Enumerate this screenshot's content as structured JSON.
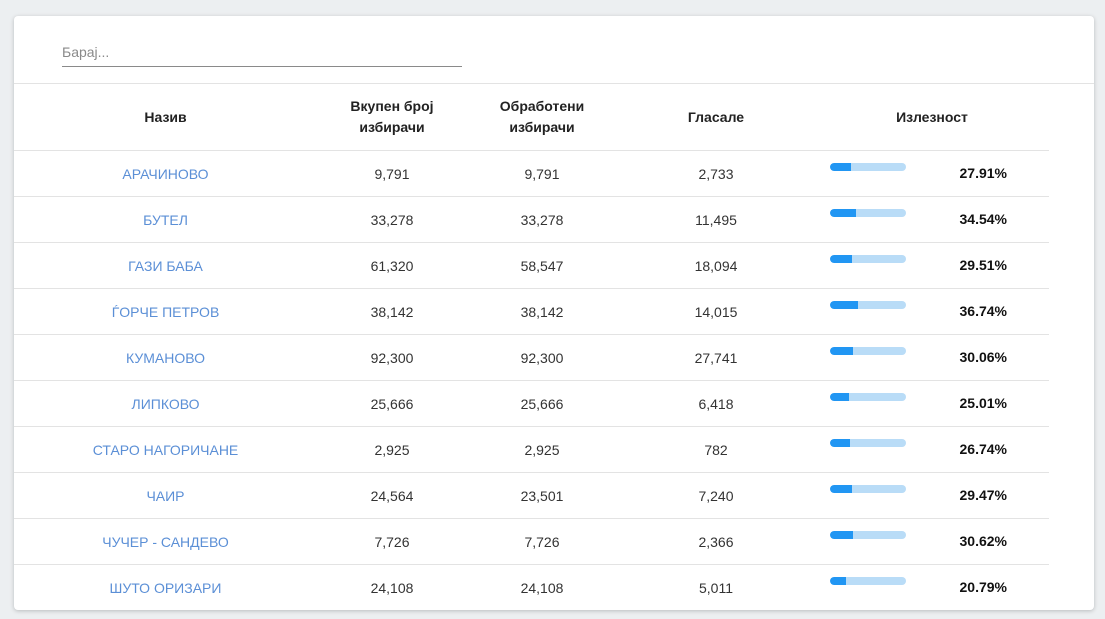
{
  "search": {
    "placeholder": "Барај..."
  },
  "table": {
    "headers": {
      "name": "Назив",
      "total_line1": "Вкупен број",
      "total_line2": "избирачи",
      "processed_line1": "Обработени",
      "processed_line2": "избирачи",
      "voted": "Гласале",
      "turnout": "Излезност"
    },
    "rows": [
      {
        "name": "АРАЧИНОВО",
        "total": "9,791",
        "processed": "9,791",
        "voted": "2,733",
        "turnout": "27.91%",
        "turnout_value": 27.91
      },
      {
        "name": "БУТЕЛ",
        "total": "33,278",
        "processed": "33,278",
        "voted": "11,495",
        "turnout": "34.54%",
        "turnout_value": 34.54
      },
      {
        "name": "ГАЗИ БАБА",
        "total": "61,320",
        "processed": "58,547",
        "voted": "18,094",
        "turnout": "29.51%",
        "turnout_value": 29.51
      },
      {
        "name": "ЃОРЧЕ ПЕТРОВ",
        "total": "38,142",
        "processed": "38,142",
        "voted": "14,015",
        "turnout": "36.74%",
        "turnout_value": 36.74
      },
      {
        "name": "КУМАНОВО",
        "total": "92,300",
        "processed": "92,300",
        "voted": "27,741",
        "turnout": "30.06%",
        "turnout_value": 30.06
      },
      {
        "name": "ЛИПКОВО",
        "total": "25,666",
        "processed": "25,666",
        "voted": "6,418",
        "turnout": "25.01%",
        "turnout_value": 25.01
      },
      {
        "name": "СТАРО НАГОРИЧАНЕ",
        "total": "2,925",
        "processed": "2,925",
        "voted": "782",
        "turnout": "26.74%",
        "turnout_value": 26.74
      },
      {
        "name": "ЧАИР",
        "total": "24,564",
        "processed": "23,501",
        "voted": "7,240",
        "turnout": "29.47%",
        "turnout_value": 29.47
      },
      {
        "name": "ЧУЧЕР - САНДЕВО",
        "total": "7,726",
        "processed": "7,726",
        "voted": "2,366",
        "turnout": "30.62%",
        "turnout_value": 30.62
      },
      {
        "name": "ШУТО ОРИЗАРИ",
        "total": "24,108",
        "processed": "24,108",
        "voted": "5,011",
        "turnout": "20.79%",
        "turnout_value": 20.79
      }
    ]
  },
  "colors": {
    "link": "#5b8fd6",
    "bar_fill": "#2196f3",
    "bar_track": "#b9dcf7"
  }
}
